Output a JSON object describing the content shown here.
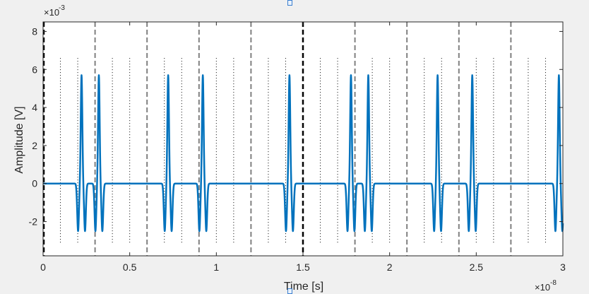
{
  "chart_data": {
    "type": "line",
    "title": "",
    "xlabel": "Time [s]",
    "ylabel": "Amplitude [V]",
    "x_exponent_label": "×10",
    "x_exponent_power": "-8",
    "y_exponent_label": "×10",
    "y_exponent_power": "-3",
    "xlim": [
      0,
      3e-08
    ],
    "ylim": [
      -0.0038,
      0.0085
    ],
    "x_ticks": [
      0,
      0.5,
      1,
      1.5,
      2,
      2.5,
      3
    ],
    "x_tick_labels": [
      "0",
      "0.5",
      "1",
      "1.5",
      "2",
      "2.5",
      "3"
    ],
    "y_ticks": [
      -2,
      0,
      2,
      4,
      6,
      8
    ],
    "y_tick_labels": [
      "-2",
      "0",
      "2",
      "4",
      "6",
      "8"
    ],
    "grid": false,
    "legend": "none",
    "colors": {
      "signal": "#0072bd",
      "frame_boundary": "#000000",
      "slot_boundary": "#808080",
      "chip_marker": "#000000",
      "plot_bg": "#ffffff",
      "figure_bg": "#f0f0f0"
    },
    "pulse": {
      "peak": 0.0057,
      "trough": -0.0025,
      "centers_ns": [
        2.22,
        3.22,
        7.22,
        9.22,
        14.22,
        17.77,
        18.77,
        22.77,
        24.77,
        29.77
      ]
    },
    "frame_boundaries_ns": [
      0,
      15
    ],
    "slot_boundaries_ns": [
      3,
      6,
      9,
      12,
      18,
      21,
      24,
      27
    ],
    "chip_markers_ns": [
      1,
      2,
      4,
      5,
      7,
      8,
      10,
      11,
      13,
      14,
      16,
      17,
      19,
      20,
      22,
      23,
      25,
      26,
      28,
      29
    ],
    "chip_marker_range": [
      -0.0031,
      0.0067
    ]
  }
}
